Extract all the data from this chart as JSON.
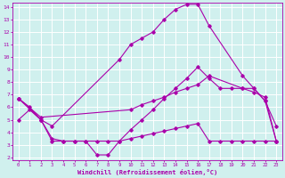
{
  "background_color": "#d0f0ee",
  "grid_color": "#ffffff",
  "line_color": "#aa00aa",
  "xlabel": "Windchill (Refroidissement éolien,°C)",
  "xlim": [
    -0.5,
    23.5
  ],
  "ylim": [
    1.8,
    14.3
  ],
  "yticks": [
    2,
    3,
    4,
    5,
    6,
    7,
    8,
    9,
    10,
    11,
    12,
    13,
    14
  ],
  "xticks": [
    0,
    1,
    2,
    3,
    4,
    5,
    6,
    7,
    8,
    9,
    10,
    11,
    12,
    13,
    14,
    15,
    16,
    17,
    18,
    19,
    20,
    21,
    22,
    23
  ],
  "series": [
    {
      "x": [
        0,
        2,
        3,
        9,
        10,
        11,
        12,
        13,
        14,
        15,
        16,
        17,
        20,
        21,
        22,
        23
      ],
      "y": [
        6.7,
        5.0,
        4.5,
        9.8,
        11.0,
        11.5,
        12.0,
        13.0,
        13.8,
        14.2,
        14.2,
        12.5,
        8.5,
        7.5,
        6.5,
        4.5
      ]
    },
    {
      "x": [
        0,
        2,
        10,
        11,
        12,
        13,
        14,
        15,
        16,
        17,
        20,
        21,
        22,
        23
      ],
      "y": [
        6.7,
        5.2,
        5.8,
        6.2,
        6.5,
        6.8,
        7.2,
        7.5,
        7.8,
        8.5,
        7.5,
        7.2,
        6.8,
        3.3
      ]
    },
    {
      "x": [
        0,
        1,
        2,
        3,
        4,
        5,
        6,
        7,
        8,
        9,
        10,
        11,
        12,
        13,
        14,
        15,
        16,
        17,
        18,
        19,
        20,
        21,
        22,
        23
      ],
      "y": [
        6.7,
        6.0,
        5.0,
        3.3,
        3.3,
        3.3,
        3.3,
        2.2,
        2.2,
        3.3,
        4.2,
        5.0,
        5.8,
        6.7,
        7.5,
        8.3,
        9.2,
        8.3,
        7.5,
        7.5,
        7.5,
        7.5,
        6.5,
        3.3
      ]
    },
    {
      "x": [
        0,
        1,
        2,
        3,
        4,
        5,
        6,
        7,
        8,
        9,
        10,
        11,
        12,
        13,
        14,
        15,
        16,
        17,
        18,
        19,
        20,
        21,
        22,
        23
      ],
      "y": [
        5.0,
        5.8,
        5.0,
        3.5,
        3.3,
        3.3,
        3.3,
        3.3,
        3.3,
        3.3,
        3.5,
        3.7,
        3.9,
        4.1,
        4.3,
        4.5,
        4.7,
        3.3,
        3.3,
        3.3,
        3.3,
        3.3,
        3.3,
        3.3
      ]
    }
  ]
}
